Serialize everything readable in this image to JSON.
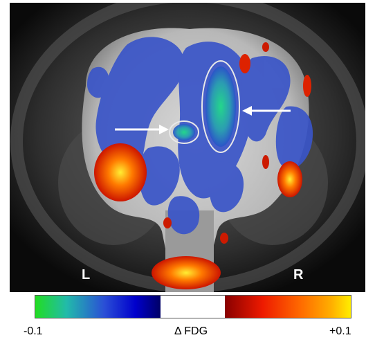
{
  "figure": {
    "left_label": "L",
    "right_label": "R",
    "colorbar": {
      "min_label": "-0.1",
      "center_label": "Δ FDG",
      "max_label": "+0.1",
      "negative_colors": [
        "#22dd22",
        "#2a4fd6",
        "#000066"
      ],
      "zero_color": "#ffffff",
      "positive_colors": [
        "#880000",
        "#ee1a00",
        "#ffb000",
        "#ffee00"
      ]
    },
    "annotations": [
      {
        "type": "arrow",
        "direction": "right"
      },
      {
        "type": "arrow",
        "direction": "left"
      }
    ]
  }
}
